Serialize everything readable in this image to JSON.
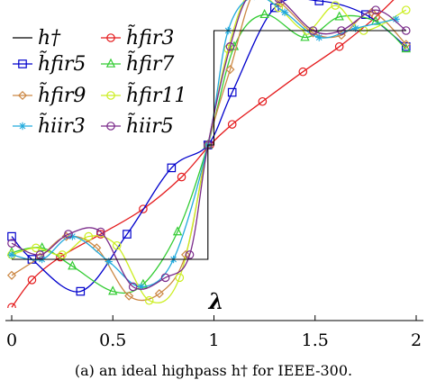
{
  "chart_data": {
    "type": "line",
    "title": "",
    "caption": "(a) an ideal highpass h† for IEEE-300.",
    "xlabel": "λ",
    "ylabel": "",
    "xlim": [
      0,
      2
    ],
    "ylim": [
      -0.25,
      1.25
    ],
    "x_ticks": [
      0,
      0.5,
      1,
      1.5,
      2
    ],
    "x_tick_labels": [
      "0",
      "0.5",
      "1",
      "1.5",
      "2"
    ],
    "grid": false,
    "legend_position": "top-left",
    "legend": [
      {
        "label": "h†",
        "series": "ideal"
      },
      {
        "label": "h̃fir3",
        "series": "fir3"
      },
      {
        "label": "h̃fir5",
        "series": "fir5"
      },
      {
        "label": "h̃fir7",
        "series": "fir7"
      },
      {
        "label": "h̃fir9",
        "series": "fir9"
      },
      {
        "label": "h̃fir11",
        "series": "fir11"
      },
      {
        "label": "h̃iir3",
        "series": "iir3"
      },
      {
        "label": "h̃iir5",
        "series": "iir5"
      }
    ],
    "series": [
      {
        "key": "ideal",
        "color": "#000000",
        "marker": "none",
        "x": [
          0,
          0.97,
          0.97,
          1.0,
          1.0,
          1.95
        ],
        "y": [
          0,
          0,
          0.5,
          0.5,
          1,
          1
        ]
      },
      {
        "key": "fir3",
        "color": "#e41a1c",
        "marker": "circle",
        "x": [
          0.0,
          0.1,
          0.24,
          0.44,
          0.65,
          0.84,
          0.98,
          1.09,
          1.24,
          1.44,
          1.62,
          1.8,
          1.95
        ],
        "y": [
          -0.21,
          -0.09,
          0.01,
          0.11,
          0.22,
          0.36,
          0.5,
          0.59,
          0.69,
          0.82,
          0.93,
          1.06,
          1.19
        ]
      },
      {
        "key": "fir5",
        "color": "#0000cc",
        "marker": "square",
        "x": [
          0.0,
          0.1,
          0.34,
          0.57,
          0.79,
          0.97,
          1.09,
          1.3,
          1.52,
          1.75,
          1.95
        ],
        "y": [
          0.1,
          0.0,
          -0.14,
          0.11,
          0.4,
          0.5,
          0.73,
          1.1,
          1.13,
          1.07,
          0.93
        ]
      },
      {
        "key": "fir7",
        "color": "#33cc33",
        "marker": "triangle",
        "x": [
          0.0,
          0.15,
          0.3,
          0.5,
          0.65,
          0.82,
          0.97,
          1.1,
          1.25,
          1.45,
          1.62,
          1.8,
          1.95
        ],
        "y": [
          0.03,
          0.05,
          -0.03,
          -0.14,
          -0.11,
          0.12,
          0.5,
          0.93,
          1.07,
          0.97,
          1.06,
          1.04,
          0.92
        ]
      },
      {
        "key": "fir9",
        "color": "#cc8844",
        "marker": "diamond",
        "x": [
          0.0,
          0.14,
          0.27,
          0.42,
          0.58,
          0.73,
          0.86,
          0.97,
          1.08,
          1.2,
          1.33,
          1.49,
          1.63,
          1.78,
          1.95
        ],
        "y": [
          -0.07,
          0.01,
          0.1,
          0.05,
          -0.16,
          -0.15,
          0.02,
          0.5,
          0.83,
          1.17,
          1.12,
          0.99,
          0.98,
          1.08,
          0.94
        ]
      },
      {
        "key": "fir11",
        "color": "#ccee22",
        "marker": "circle",
        "x": [
          0.0,
          0.12,
          0.25,
          0.38,
          0.52,
          0.68,
          0.83,
          0.97,
          1.07,
          1.18,
          1.32,
          1.46,
          1.6,
          1.74,
          1.95
        ],
        "y": [
          0.02,
          0.05,
          0.02,
          0.1,
          0.06,
          -0.18,
          -0.08,
          0.5,
          0.92,
          1.17,
          1.1,
          1.0,
          1.11,
          1.0,
          1.09
        ]
      },
      {
        "key": "iir3",
        "color": "#22aadd",
        "marker": "star",
        "x": [
          0.0,
          0.15,
          0.3,
          0.48,
          0.64,
          0.8,
          0.97,
          1.07,
          1.2,
          1.35,
          1.52,
          1.7,
          1.9
        ],
        "y": [
          0.02,
          0.0,
          0.1,
          -0.01,
          -0.12,
          0.0,
          0.5,
          1.0,
          1.15,
          1.08,
          0.97,
          1.01,
          1.05
        ]
      },
      {
        "key": "iir5",
        "color": "#7a2a8a",
        "marker": "circle",
        "x": [
          0.0,
          0.14,
          0.28,
          0.44,
          0.6,
          0.76,
          0.88,
          0.97,
          1.08,
          1.18,
          1.32,
          1.49,
          1.63,
          1.8,
          1.95
        ],
        "y": [
          0.07,
          0.02,
          0.11,
          0.12,
          -0.12,
          -0.08,
          0.02,
          0.5,
          0.93,
          1.16,
          1.14,
          1.0,
          1.0,
          1.09,
          1.0
        ]
      }
    ]
  }
}
